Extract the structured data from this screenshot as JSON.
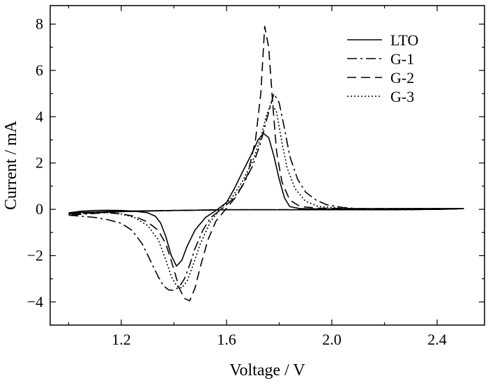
{
  "chart_data": {
    "type": "line",
    "title": "",
    "xlabel": "Voltage / V",
    "ylabel": "Current / mA",
    "xlim": [
      0.93,
      2.58
    ],
    "ylim": [
      -5.0,
      8.8
    ],
    "xticks": [
      1.2,
      1.6,
      2.0,
      2.4
    ],
    "xtick_labels": [
      "1.2",
      "1.6",
      "2.0",
      "2.4"
    ],
    "yticks": [
      -4,
      -2,
      0,
      2,
      4,
      6,
      8
    ],
    "ytick_labels": [
      "−4",
      "−2",
      "0",
      "2",
      "4",
      "6",
      "8"
    ],
    "grid": false,
    "legend_position": "top-right",
    "series": [
      {
        "name": "LTO",
        "style": "solid",
        "x": [
          1.0,
          1.05,
          1.1,
          1.15,
          1.2,
          1.25,
          1.3,
          1.33,
          1.35,
          1.37,
          1.39,
          1.41,
          1.43,
          1.45,
          1.48,
          1.52,
          1.56,
          1.6,
          1.63,
          1.66,
          1.7,
          1.72,
          1.74,
          1.76,
          1.78,
          1.8,
          1.82,
          1.84,
          1.88,
          1.95,
          2.1,
          2.3,
          2.5,
          2.4,
          2.2,
          2.0,
          1.8,
          1.6,
          1.4,
          1.2,
          1.0
        ],
        "y": [
          -0.15,
          -0.08,
          -0.05,
          -0.04,
          -0.05,
          -0.08,
          -0.15,
          -0.3,
          -0.6,
          -1.2,
          -2.0,
          -2.45,
          -2.2,
          -1.6,
          -0.9,
          -0.35,
          -0.05,
          0.3,
          0.9,
          1.6,
          2.5,
          3.0,
          3.28,
          3.1,
          2.3,
          1.3,
          0.5,
          0.12,
          0.03,
          0.02,
          0.02,
          0.03,
          0.03,
          0.0,
          -0.02,
          -0.02,
          -0.02,
          -0.02,
          -0.05,
          -0.08,
          -0.15
        ]
      },
      {
        "name": "G-1",
        "style": "dashdot",
        "x": [
          1.0,
          1.05,
          1.1,
          1.15,
          1.2,
          1.24,
          1.28,
          1.31,
          1.34,
          1.36,
          1.38,
          1.4,
          1.42,
          1.44,
          1.46,
          1.48,
          1.51,
          1.54,
          1.58,
          1.62,
          1.66,
          1.7,
          1.73,
          1.76,
          1.78,
          1.8,
          1.82,
          1.84,
          1.87,
          1.9,
          1.94,
          1.98,
          2.04,
          2.1,
          2.3,
          2.5,
          2.4,
          2.2,
          2.0,
          1.8,
          1.6,
          1.4,
          1.2,
          1.0
        ],
        "y": [
          -0.25,
          -0.3,
          -0.35,
          -0.45,
          -0.6,
          -0.9,
          -1.5,
          -2.2,
          -2.9,
          -3.3,
          -3.48,
          -3.5,
          -3.35,
          -3.0,
          -2.4,
          -1.7,
          -0.9,
          -0.35,
          0.0,
          0.4,
          1.0,
          1.9,
          2.9,
          4.2,
          5.0,
          4.6,
          3.5,
          2.3,
          1.3,
          0.75,
          0.4,
          0.2,
          0.08,
          0.03,
          0.03,
          0.03,
          0.0,
          -0.02,
          -0.02,
          -0.02,
          -0.02,
          -0.05,
          -0.1,
          -0.25
        ]
      },
      {
        "name": "G-2",
        "style": "dashed",
        "x": [
          1.0,
          1.05,
          1.1,
          1.15,
          1.2,
          1.25,
          1.3,
          1.34,
          1.37,
          1.4,
          1.42,
          1.44,
          1.46,
          1.48,
          1.5,
          1.53,
          1.56,
          1.6,
          1.64,
          1.68,
          1.71,
          1.73,
          1.745,
          1.76,
          1.775,
          1.79,
          1.81,
          1.84,
          1.88,
          1.95,
          2.1,
          2.3,
          2.5,
          2.4,
          2.2,
          2.0,
          1.8,
          1.6,
          1.4,
          1.2,
          1.0
        ],
        "y": [
          -0.2,
          -0.15,
          -0.12,
          -0.15,
          -0.2,
          -0.3,
          -0.55,
          -0.9,
          -1.5,
          -2.6,
          -3.4,
          -3.85,
          -3.95,
          -3.4,
          -2.5,
          -1.3,
          -0.5,
          0.05,
          0.6,
          1.5,
          3.0,
          5.0,
          7.9,
          7.0,
          4.6,
          2.5,
          1.2,
          0.4,
          0.12,
          0.05,
          0.03,
          0.03,
          0.03,
          0.0,
          -0.02,
          -0.02,
          -0.02,
          -0.02,
          -0.05,
          -0.1,
          -0.2
        ]
      },
      {
        "name": "G-3",
        "style": "dotted",
        "x": [
          1.0,
          1.05,
          1.1,
          1.15,
          1.2,
          1.25,
          1.3,
          1.34,
          1.37,
          1.39,
          1.41,
          1.43,
          1.45,
          1.47,
          1.5,
          1.54,
          1.58,
          1.62,
          1.66,
          1.7,
          1.73,
          1.75,
          1.77,
          1.79,
          1.81,
          1.83,
          1.86,
          1.9,
          1.95,
          2.05,
          2.2,
          2.5,
          2.4,
          2.2,
          2.0,
          1.8,
          1.6,
          1.4,
          1.2,
          1.0
        ],
        "y": [
          -0.2,
          -0.15,
          -0.12,
          -0.15,
          -0.2,
          -0.35,
          -0.7,
          -1.3,
          -2.2,
          -2.9,
          -3.3,
          -3.4,
          -3.1,
          -2.5,
          -1.5,
          -0.5,
          0.05,
          0.5,
          1.2,
          2.1,
          3.1,
          4.0,
          4.6,
          4.2,
          2.9,
          1.8,
          0.9,
          0.35,
          0.12,
          0.04,
          0.03,
          0.03,
          0.0,
          -0.02,
          -0.02,
          -0.02,
          -0.02,
          -0.05,
          -0.1,
          -0.2
        ]
      }
    ]
  }
}
